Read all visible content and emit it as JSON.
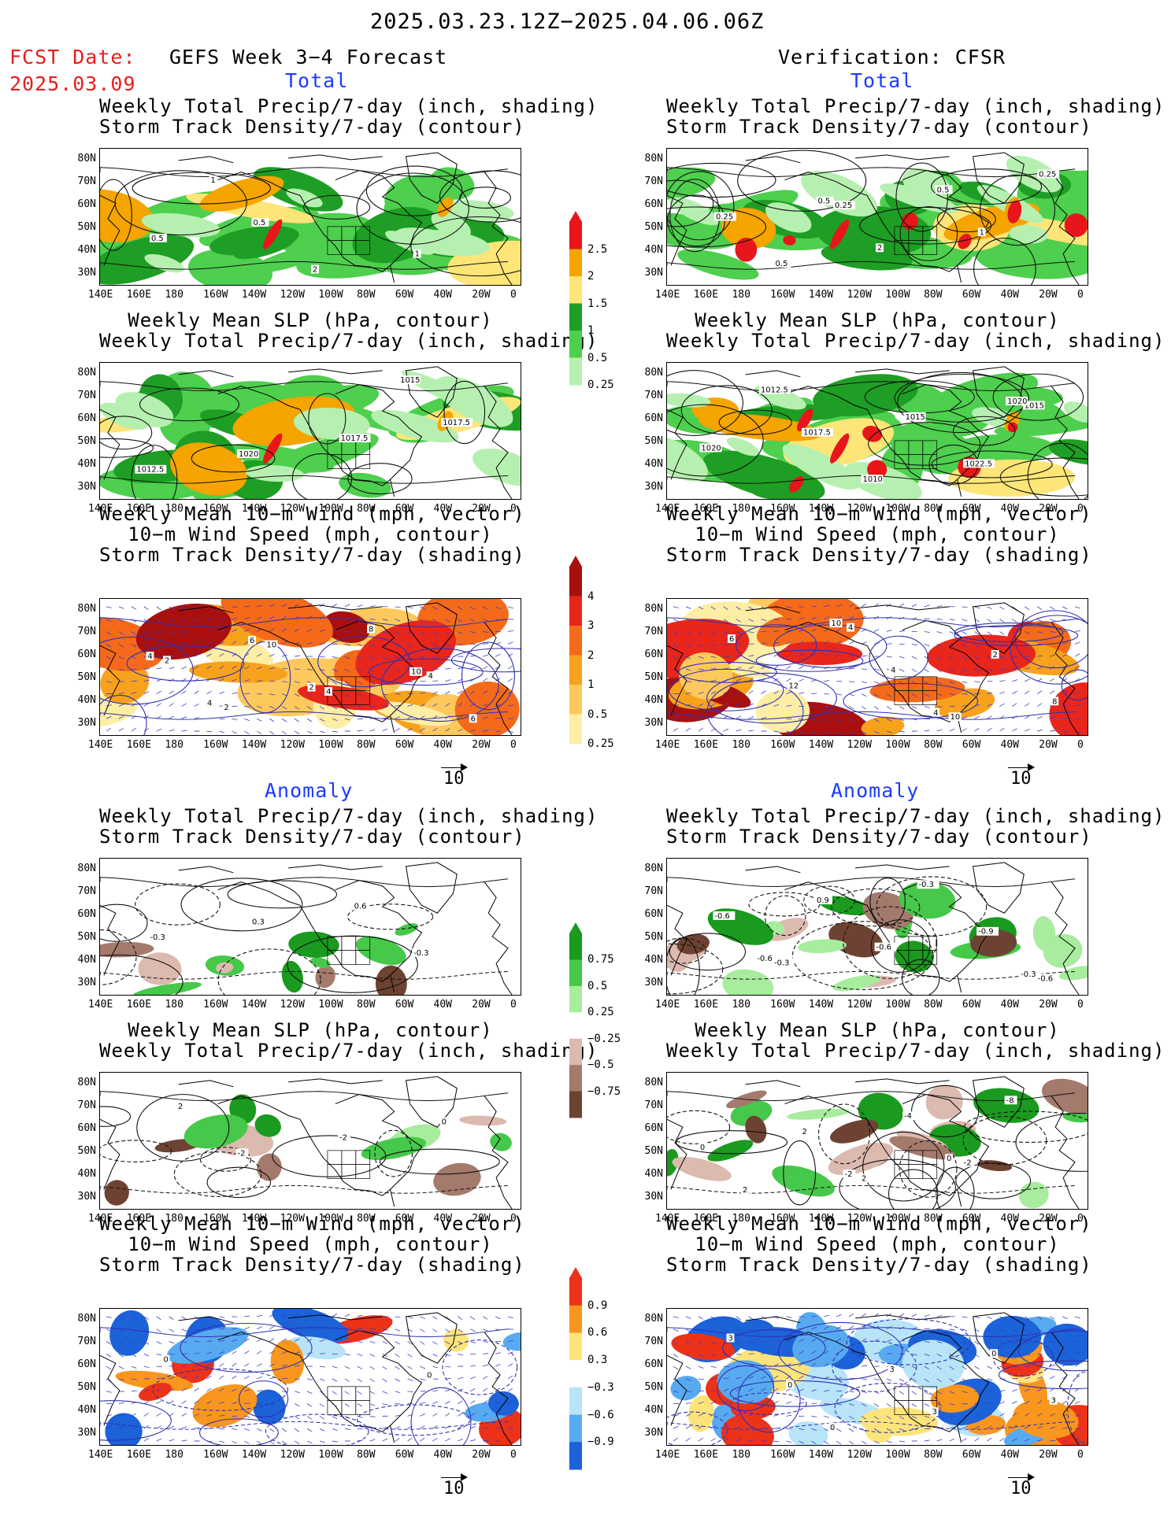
{
  "header": {
    "date_range": "2025.03.23.12Z−2025.04.06.06Z",
    "fcst_label": "FCST Date:",
    "fcst_date": "2025.03.09",
    "left_title": "GEFS Week 3−4 Forecast",
    "right_title": "Verification: CFSR",
    "total_label": "Total",
    "anomaly_label": "Anomaly"
  },
  "titles": {
    "precip_storm": [
      "Weekly Total Precip/7-day (inch, shading)",
      "Storm Track Density/7-day (contour)"
    ],
    "slp_precip": [
      "Weekly Mean SLP (hPa, contour)",
      "Weekly Total Precip/7-day (inch, shading)"
    ],
    "wind_storm": [
      "Weekly Mean 10−m Wind (mph, vector)",
      "10−m Wind Speed (mph, contour)",
      "Storm Track Density/7-day (shading)"
    ],
    "slp_precip_anom_right": [
      "Weekly Mean SLP (hPa, contour)",
      "Weekly Total Precip/7-day (inch, shading)"
    ]
  },
  "axes": {
    "lon_labels": [
      "140E",
      "160E",
      "180",
      "160W",
      "140W",
      "120W",
      "100W",
      "80W",
      "60W",
      "40W",
      "20W",
      "0"
    ],
    "lat_labels": [
      "80N",
      "70N",
      "60N",
      "50N",
      "40N",
      "30N"
    ]
  },
  "colorbars": {
    "precip_total": {
      "labels": [
        "2.5",
        "2",
        "1.5",
        "1",
        "0.5",
        "0.25"
      ],
      "colors": [
        "#e8161a",
        "#f5a400",
        "#fde578",
        "#1e9e24",
        "#4ecf4e",
        "#b6f0b0"
      ]
    },
    "storm_total": {
      "labels": [
        "4",
        "3",
        "2",
        "1",
        "0.5",
        "0.25"
      ],
      "colors": [
        "#a8100f",
        "#e8261c",
        "#f46a1a",
        "#f8a21c",
        "#fdc95c",
        "#fdeea4"
      ]
    },
    "precip_anom": {
      "labels": [
        "0.75",
        "0.5",
        "0.25",
        "−0.25",
        "−0.5",
        "−0.75"
      ],
      "colors": [
        "#1a9a1e",
        "#46c84a",
        "#a8ec9e",
        "#ffffff",
        "#dcbab0",
        "#a47a6c",
        "#6e4232"
      ]
    },
    "storm_anom": {
      "labels": [
        "0.9",
        "0.6",
        "0.3",
        "−0.3",
        "−0.6",
        "−0.9"
      ],
      "colors": [
        "#ec3218",
        "#f8961e",
        "#fde47a",
        "#ffffff",
        "#b8e4f8",
        "#58aaf0",
        "#1c62d8"
      ]
    }
  },
  "vector_ref": "10",
  "contour_labels": {
    "p1_left": [
      "1",
      "2",
      "1",
      "0.5",
      "0.5"
    ],
    "p1_right": [
      "0.25",
      "0.5",
      "0.25",
      "0.5",
      "2",
      "1",
      "0.25",
      "0.5"
    ],
    "p2_left": [
      "1015",
      "1012.5",
      "1020",
      "1017.5",
      "1017.5"
    ],
    "p2_right": [
      "1015",
      "1012.5",
      "1010",
      "1022.5",
      "1020",
      "1017.5",
      "1015",
      "1020"
    ],
    "p3_left": [
      "2",
      "4",
      "4",
      "2",
      "10",
      "8",
      "6",
      "4",
      "2",
      "10",
      "4",
      "6"
    ],
    "p3_right": [
      "4",
      "10",
      "8",
      "12",
      "4",
      "2",
      "6",
      "10",
      "4"
    ],
    "p4_left": [
      "-0.3",
      "-0.3",
      "0.3",
      "0.6"
    ],
    "p4_right": [
      "-0.6",
      "-0.3",
      "-0.6",
      "-0.9",
      "-0.6",
      "0.9",
      "-0.3",
      "-0.3",
      "-0.6"
    ],
    "p5_left": [
      "-2",
      "-2",
      "0",
      "2"
    ],
    "p5_right": [
      "2",
      "-2",
      "0",
      "2",
      "-4",
      "-8",
      "2",
      "-2",
      "0"
    ],
    "p6_left": [
      "0",
      "0"
    ],
    "p6_right": [
      "3",
      "0",
      "3",
      "0",
      "3",
      "0",
      "3"
    ]
  },
  "chart_data": [
    {
      "type": "heatmap",
      "panel": "forecast-total-precip-storm",
      "title": [
        "Weekly Total Precip/7-day (inch, shading)",
        "Storm Track Density/7-day (contour)"
      ],
      "shading_levels": [
        0.25,
        0.5,
        1,
        1.5,
        2,
        2.5
      ],
      "contour_levels": [
        0.5,
        1,
        2
      ]
    },
    {
      "type": "heatmap",
      "panel": "verification-total-precip-storm",
      "title": [
        "Weekly Total Precip/7-day (inch, shading)",
        "Storm Track Density/7-day (contour)"
      ],
      "shading_levels": [
        0.25,
        0.5,
        1,
        1.5,
        2,
        2.5
      ],
      "contour_levels": [
        0.25,
        0.5,
        1,
        2
      ]
    },
    {
      "type": "heatmap",
      "panel": "forecast-total-slp-precip",
      "contour_levels": [
        1012.5,
        1015,
        1017.5,
        1020
      ]
    },
    {
      "type": "heatmap",
      "panel": "verification-total-slp-precip",
      "contour_levels": [
        1010,
        1012.5,
        1015,
        1017.5,
        1020,
        1022.5
      ]
    },
    {
      "type": "heatmap",
      "panel": "forecast-total-wind-storm",
      "shading_levels": [
        0.25,
        0.5,
        1,
        2,
        3,
        4
      ],
      "contour_levels": [
        2,
        4,
        6,
        8,
        10
      ]
    },
    {
      "type": "heatmap",
      "panel": "verification-total-wind-storm",
      "shading_levels": [
        0.25,
        0.5,
        1,
        2,
        3,
        4
      ],
      "contour_levels": [
        2,
        4,
        6,
        8,
        10,
        12
      ]
    },
    {
      "type": "heatmap",
      "panel": "forecast-anom-precip-storm",
      "shading_levels": [
        -0.75,
        -0.5,
        -0.25,
        0.25,
        0.5,
        0.75
      ],
      "contour_levels": [
        -0.3,
        0.3,
        0.6
      ]
    },
    {
      "type": "heatmap",
      "panel": "verification-anom-precip-storm",
      "shading_levels": [
        -0.75,
        -0.5,
        -0.25,
        0.25,
        0.5,
        0.75
      ],
      "contour_levels": [
        -0.9,
        -0.6,
        -0.3,
        0.9
      ]
    },
    {
      "type": "heatmap",
      "panel": "forecast-anom-slp-precip",
      "contour_levels": [
        -2,
        0,
        2
      ]
    },
    {
      "type": "heatmap",
      "panel": "verification-anom-slp-precip",
      "contour_levels": [
        -8,
        -4,
        -2,
        0,
        2
      ]
    },
    {
      "type": "heatmap",
      "panel": "forecast-anom-wind-storm",
      "shading_levels": [
        -0.9,
        -0.6,
        -0.3,
        0.3,
        0.6,
        0.9
      ],
      "contour_levels": [
        0
      ]
    },
    {
      "type": "heatmap",
      "panel": "verification-anom-wind-storm",
      "shading_levels": [
        -0.9,
        -0.6,
        -0.3,
        0.3,
        0.6,
        0.9
      ],
      "contour_levels": [
        0,
        3
      ]
    }
  ]
}
